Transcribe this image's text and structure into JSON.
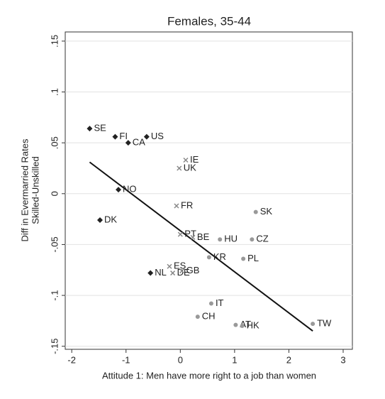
{
  "chart_data": {
    "type": "scatter",
    "title": "Females, 35-44",
    "x_label": "Attitude 1: Men have more right to a job than women",
    "y_label": [
      "Diff in Evermarried Rates",
      "Skilled-Unskilled"
    ],
    "xlim": [
      -2.12,
      3.17
    ],
    "ylim": [
      -0.153,
      0.159
    ],
    "xticks": [
      -2,
      -1,
      0,
      1,
      2,
      3
    ],
    "yticks": [
      {
        "value": -0.15,
        "label": "-.15"
      },
      {
        "value": -0.1,
        "label": "-.1"
      },
      {
        "value": -0.05,
        "label": "-.05"
      },
      0,
      {
        "value": 0.05,
        "label": ".05"
      },
      {
        "value": 0.1,
        "label": ".1"
      },
      {
        "value": 0.15,
        "label": ".15"
      }
    ],
    "grid": true,
    "series": [
      {
        "color": "#222222",
        "marker": "diamond",
        "labels": [
          "SE",
          "FI",
          "CA",
          "US",
          "NO",
          "DK",
          "NL"
        ],
        "x": [
          -1.67,
          -1.2,
          -0.96,
          -0.62,
          -1.14,
          -1.48,
          -0.55
        ],
        "values": [
          0.064,
          0.056,
          0.05,
          0.056,
          0.004,
          -0.026,
          -0.078
        ]
      },
      {
        "color": "#888888",
        "marker": "cross",
        "labels": [
          "IE",
          "UK",
          "FR",
          "PT",
          "BE",
          "ES",
          "DE",
          "GB"
        ],
        "x": [
          0.1,
          -0.02,
          -0.07,
          0.0,
          0.23,
          -0.2,
          -0.14,
          0.03
        ],
        "values": [
          0.033,
          0.025,
          -0.012,
          -0.04,
          -0.043,
          -0.0715,
          -0.078,
          -0.076
        ]
      },
      {
        "color": "#999999",
        "marker": "circle",
        "labels": [
          "SK",
          "HU",
          "CZ",
          "KR",
          "PL",
          "IT",
          "CH",
          "AT",
          "HK",
          "TW"
        ],
        "x": [
          1.39,
          0.73,
          1.32,
          0.53,
          1.16,
          0.57,
          0.32,
          1.02,
          1.14,
          2.44
        ],
        "values": [
          -0.018,
          -0.045,
          -0.045,
          -0.0625,
          -0.064,
          -0.108,
          -0.121,
          -0.129,
          -0.13,
          -0.128
        ]
      }
    ],
    "fit_line": {
      "color": "#111111",
      "x": [
        -1.67,
        2.44
      ],
      "values": [
        0.031,
        -0.135
      ]
    }
  }
}
